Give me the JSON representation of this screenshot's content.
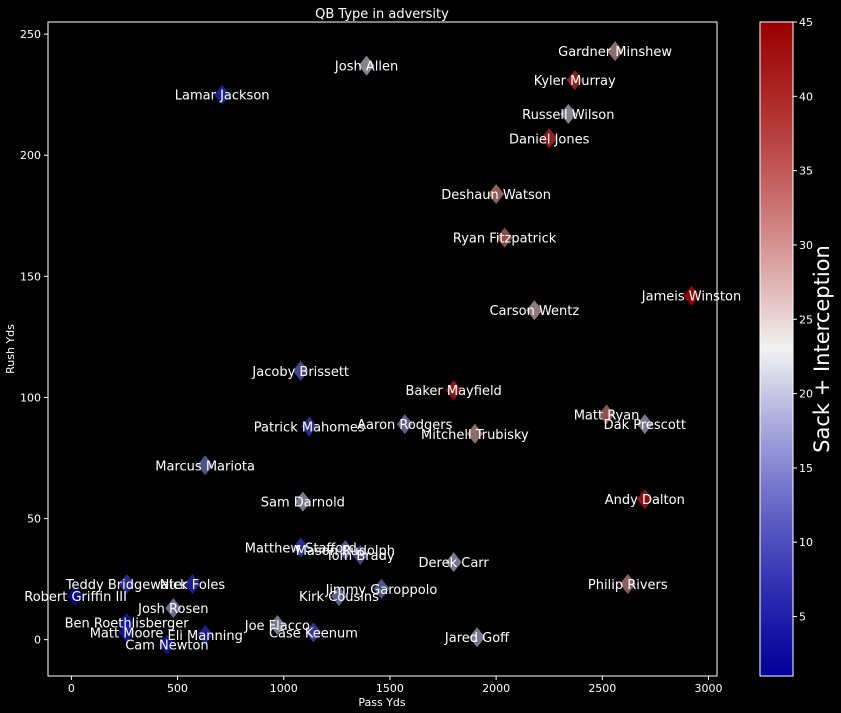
{
  "chart_data": {
    "type": "scatter",
    "title": "QB Type in adversity",
    "xlabel": "Pass Yds",
    "ylabel": "Rush Yds",
    "xlim": [
      -110,
      3040
    ],
    "ylim": [
      -15,
      255
    ],
    "xticks": [
      0,
      500,
      1000,
      1500,
      2000,
      2500,
      3000
    ],
    "yticks": [
      0,
      50,
      100,
      150,
      200,
      250
    ],
    "marker": "diamond",
    "colorbar": {
      "label": "Sack + Interception",
      "min": 1,
      "max": 45,
      "ticks": [
        5,
        10,
        15,
        20,
        25,
        30,
        35,
        40,
        45
      ],
      "colormap": "bwr",
      "colors": [
        "#0000ff",
        "#ffffff",
        "#ff0000"
      ]
    },
    "points": [
      {
        "name": "Gardner Minshew",
        "x": 2560,
        "y": 243,
        "c": 28
      },
      {
        "name": "Josh Allen",
        "x": 1390,
        "y": 237,
        "c": 22
      },
      {
        "name": "Kyler Murray",
        "x": 2370,
        "y": 231,
        "c": 40
      },
      {
        "name": "Lamar Jackson",
        "x": 710,
        "y": 225,
        "c": 6
      },
      {
        "name": "Russell Wilson",
        "x": 2340,
        "y": 217,
        "c": 22
      },
      {
        "name": "Daniel Jones",
        "x": 2250,
        "y": 207,
        "c": 40
      },
      {
        "name": "Deshaun Watson",
        "x": 2000,
        "y": 184,
        "c": 30
      },
      {
        "name": "Ryan Fitzpatrick",
        "x": 2040,
        "y": 166,
        "c": 33
      },
      {
        "name": "Jameis Winston",
        "x": 2920,
        "y": 142,
        "c": 45
      },
      {
        "name": "Carson Wentz",
        "x": 2180,
        "y": 136,
        "c": 26
      },
      {
        "name": "Jacoby Brissett",
        "x": 1080,
        "y": 111,
        "c": 12
      },
      {
        "name": "Baker Mayfield",
        "x": 1800,
        "y": 103,
        "c": 41
      },
      {
        "name": "Matt Ryan",
        "x": 2520,
        "y": 93,
        "c": 32
      },
      {
        "name": "Dak Prescott",
        "x": 2700,
        "y": 89,
        "c": 20
      },
      {
        "name": "Aaron Rodgers",
        "x": 1570,
        "y": 89,
        "c": 16
      },
      {
        "name": "Patrick Mahomes",
        "x": 1120,
        "y": 88,
        "c": 8
      },
      {
        "name": "Mitchell Trubisky",
        "x": 1900,
        "y": 85,
        "c": 28
      },
      {
        "name": "Marcus Mariota",
        "x": 630,
        "y": 72,
        "c": 14
      },
      {
        "name": "Andy Dalton",
        "x": 2700,
        "y": 58,
        "c": 42
      },
      {
        "name": "Sam Darnold",
        "x": 1090,
        "y": 57,
        "c": 20
      },
      {
        "name": "Matthew Stafford",
        "x": 1080,
        "y": 38,
        "c": 8
      },
      {
        "name": "Mason Rudolph",
        "x": 1290,
        "y": 37,
        "c": 14
      },
      {
        "name": "Tom Brady",
        "x": 1360,
        "y": 35,
        "c": 12
      },
      {
        "name": "Derek Carr",
        "x": 1800,
        "y": 32,
        "c": 20
      },
      {
        "name": "Philip Rivers",
        "x": 2620,
        "y": 23,
        "c": 30
      },
      {
        "name": "Teddy Bridgewater",
        "x": 260,
        "y": 23,
        "c": 8
      },
      {
        "name": "Nick Foles",
        "x": 570,
        "y": 23,
        "c": 6
      },
      {
        "name": "Jimmy Garoppolo",
        "x": 1460,
        "y": 21,
        "c": 14
      },
      {
        "name": "Kirk Cousins",
        "x": 1260,
        "y": 18,
        "c": 16
      },
      {
        "name": "Robert Griffin III",
        "x": 20,
        "y": 18,
        "c": 2
      },
      {
        "name": "Josh Rosen",
        "x": 480,
        "y": 13,
        "c": 18
      },
      {
        "name": "Ben Roethlisberger",
        "x": 260,
        "y": 7,
        "c": 4
      },
      {
        "name": "Joe Flacco",
        "x": 970,
        "y": 6,
        "c": 20
      },
      {
        "name": "Case Keenum",
        "x": 1140,
        "y": 3,
        "c": 10
      },
      {
        "name": "Matt Moore",
        "x": 260,
        "y": 3,
        "c": 4
      },
      {
        "name": "Eli Manning",
        "x": 630,
        "y": 2,
        "c": 6
      },
      {
        "name": "Jared Goff",
        "x": 1910,
        "y": 1,
        "c": 20
      },
      {
        "name": "Cam Newton",
        "x": 450,
        "y": -2,
        "c": 4
      }
    ]
  }
}
